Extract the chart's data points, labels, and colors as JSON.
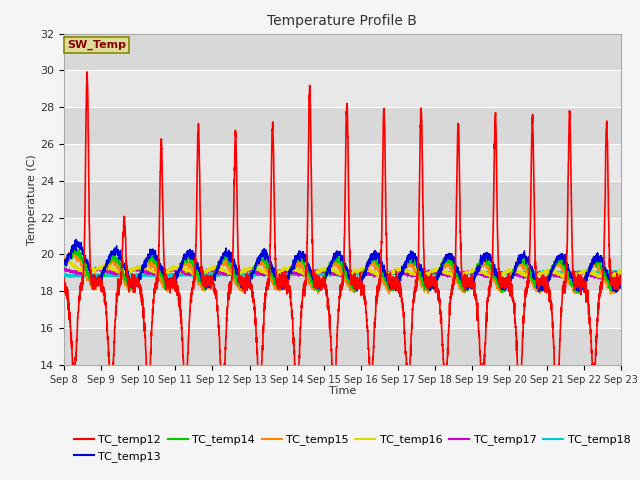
{
  "title": "Temperature Profile B",
  "xlabel": "Time",
  "ylabel": "Temperature (C)",
  "ylim": [
    14,
    32
  ],
  "xlim": [
    0,
    15
  ],
  "x_tick_labels": [
    "Sep 8",
    "Sep 9",
    "Sep 10",
    "Sep 11",
    "Sep 12",
    "Sep 13",
    "Sep 14",
    "Sep 15",
    "Sep 16",
    "Sep 17",
    "Sep 18",
    "Sep 19",
    "Sep 20",
    "Sep 21",
    "Sep 22",
    "Sep 23"
  ],
  "yticks": [
    14,
    16,
    18,
    20,
    22,
    24,
    26,
    28,
    30,
    32
  ],
  "series_colors": {
    "TC_temp12": "#ff0000",
    "TC_temp13": "#0000dd",
    "TC_temp14": "#00cc00",
    "TC_temp15": "#ff8800",
    "TC_temp16": "#dddd00",
    "TC_temp17": "#cc00cc",
    "TC_temp18": "#00cccc"
  },
  "sw_temp_box_facecolor": "#dddd99",
  "sw_temp_box_edgecolor": "#888800",
  "sw_temp_text_color": "#880000",
  "plot_bg_color": "#e8e8e8",
  "grid_stripe_color": "#d0d0d0",
  "grid_line_color": "#ffffff",
  "fig_bg_color": "#f5f5f5"
}
